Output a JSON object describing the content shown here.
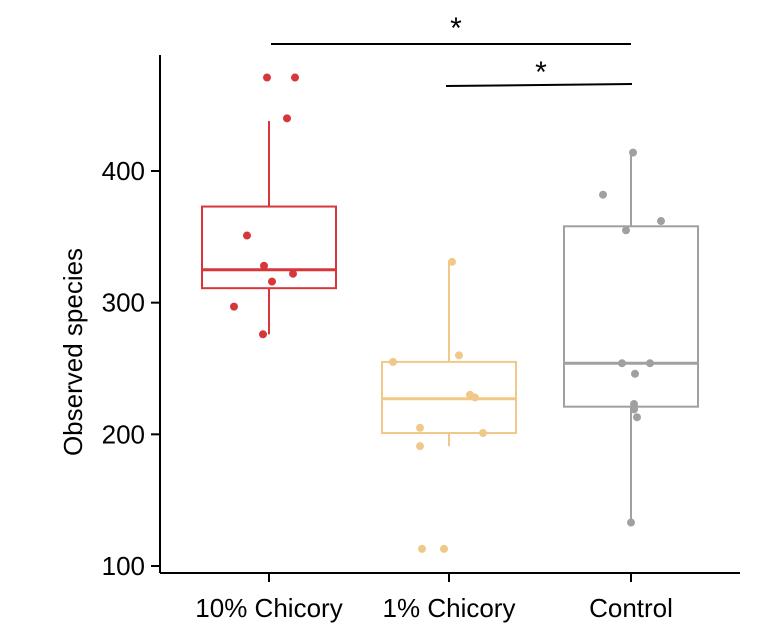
{
  "chart_data": {
    "type": "box",
    "title": "",
    "xlabel": "",
    "ylabel": "Observed species",
    "ylim": [
      100,
      475
    ],
    "yticks": [
      100,
      200,
      300,
      400
    ],
    "categories": [
      "10% Chicory",
      "1% Chicory",
      "Control"
    ],
    "colors": {
      "10% Chicory": "#d7373a",
      "1% Chicory": "#f0c98a",
      "Control": "#a0a0a0"
    },
    "boxes": [
      {
        "name": "10% Chicory",
        "whisker_low": 276,
        "q1": 311,
        "median": 325,
        "q3": 373,
        "whisker_high": 438,
        "points": [
          471,
          471,
          440,
          351,
          328,
          322,
          316,
          297,
          276
        ]
      },
      {
        "name": "1% Chicory",
        "whisker_low": 191,
        "q1": 201,
        "median": 227,
        "q3": 255,
        "whisker_high": 331,
        "points": [
          331,
          260,
          255,
          230,
          228,
          205,
          201,
          191,
          113,
          113
        ]
      },
      {
        "name": "Control",
        "whisker_low": 133,
        "q1": 221,
        "median": 254,
        "q3": 358,
        "whisker_high": 414,
        "points": [
          414,
          382,
          362,
          355,
          254,
          254,
          246,
          223,
          219,
          213,
          133
        ]
      }
    ],
    "significance": [
      {
        "from": "10% Chicory",
        "to": "Control",
        "label": "*"
      },
      {
        "from": "1% Chicory",
        "to": "Control",
        "label": "*"
      }
    ]
  }
}
